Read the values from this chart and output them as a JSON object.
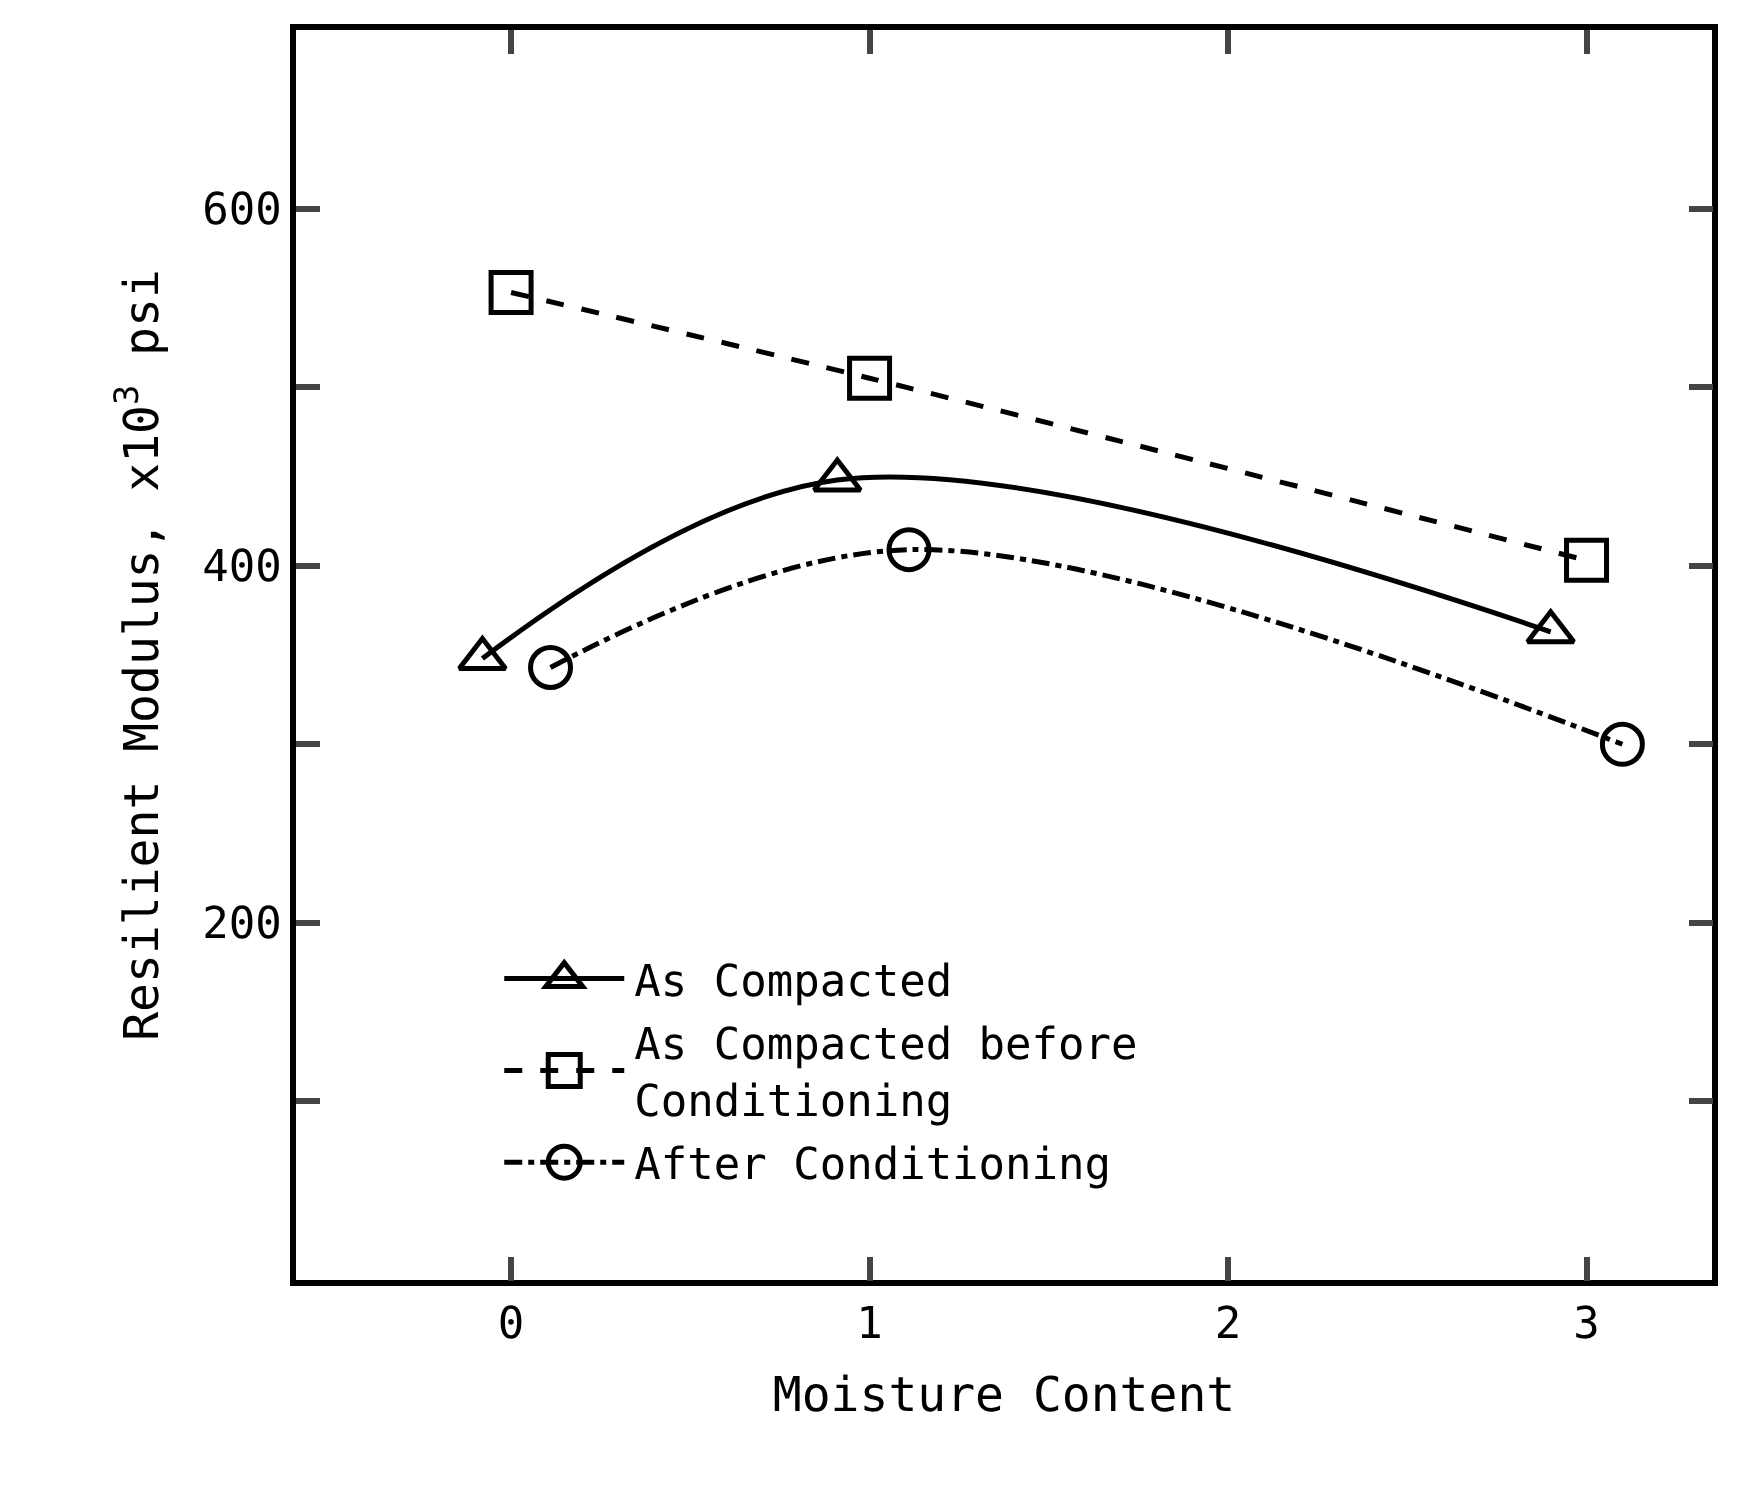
{
  "chart_data": {
    "type": "line",
    "xlabel": "Moisture Content",
    "ylabel": "Resilient Modulus, x10$^{3}$ psi",
    "xlim": [
      -0.6,
      3.35
    ],
    "xticks": [
      0,
      1,
      2,
      3
    ],
    "ylim": [
      0,
      700
    ],
    "yticks": [
      {
        "value": 100,
        "label": null
      },
      200,
      {
        "value": 300,
        "label": null
      },
      400,
      {
        "value": 500,
        "label": null
      },
      600
    ],
    "legend": "bottom",
    "series": [
      {
        "name": "As Compacted",
        "color": "#000000",
        "x": [
          -0.08,
          0.91,
          2.9
        ],
        "values": [
          348,
          448,
          363
        ],
        "marker": "triangle",
        "line_style": "solid"
      },
      {
        "name": "As Compacted before\nConditioning",
        "color": "#000000",
        "x": [
          0,
          1,
          3
        ],
        "values": [
          553,
          505,
          403
        ],
        "marker": "square",
        "line_style": "dashed"
      },
      {
        "name": "After Conditioning",
        "color": "#000000",
        "x": [
          0.11,
          1.11,
          3.1
        ],
        "values": [
          343,
          409,
          300
        ],
        "marker": "circle",
        "line_style": "dashdot"
      }
    ]
  }
}
